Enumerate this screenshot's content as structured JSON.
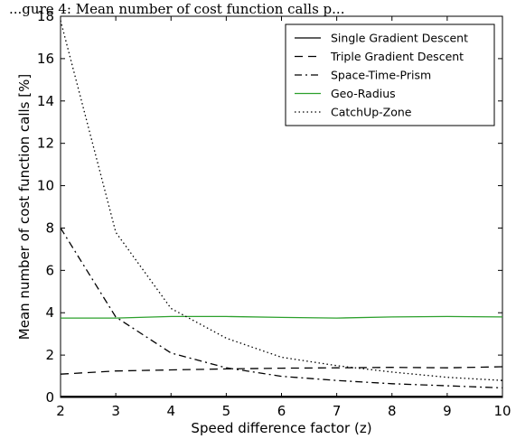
{
  "header_text": "...gure 4: Mean number of cost function calls p...",
  "chart_data": {
    "type": "line",
    "title": "",
    "xlabel": "Speed difference factor (z)",
    "ylabel": "Mean number of cost function calls [%]",
    "xlim": [
      2,
      10
    ],
    "ylim": [
      0,
      18
    ],
    "x_ticks": [
      2,
      3,
      4,
      5,
      6,
      7,
      8,
      9,
      10
    ],
    "y_ticks": [
      0,
      2,
      4,
      6,
      8,
      10,
      12,
      14,
      16,
      18
    ],
    "grid": false,
    "legend_position": "top-right",
    "series": [
      {
        "name": "Single Gradient Descent",
        "color": "#000000",
        "style": "solid",
        "points": [
          [
            2,
            0.05
          ],
          [
            3,
            0.05
          ],
          [
            4,
            0.05
          ],
          [
            5,
            0.05
          ],
          [
            6,
            0.05
          ],
          [
            7,
            0.05
          ],
          [
            8,
            0.05
          ],
          [
            9,
            0.05
          ],
          [
            10,
            0.05
          ]
        ]
      },
      {
        "name": "Triple Gradient Descent",
        "color": "#000000",
        "style": "dashed",
        "points": [
          [
            2,
            1.1
          ],
          [
            3,
            1.25
          ],
          [
            4,
            1.3
          ],
          [
            5,
            1.35
          ],
          [
            6,
            1.38
          ],
          [
            7,
            1.4
          ],
          [
            8,
            1.42
          ],
          [
            9,
            1.4
          ],
          [
            10,
            1.45
          ]
        ]
      },
      {
        "name": "Space-Time-Prism",
        "color": "#000000",
        "style": "dashdot",
        "points": [
          [
            2,
            8.0
          ],
          [
            3,
            3.8
          ],
          [
            4,
            2.1
          ],
          [
            5,
            1.4
          ],
          [
            6,
            1.0
          ],
          [
            7,
            0.8
          ],
          [
            8,
            0.65
          ],
          [
            9,
            0.55
          ],
          [
            10,
            0.45
          ]
        ]
      },
      {
        "name": "Geo-Radius",
        "color": "#2ca02c",
        "style": "solid",
        "points": [
          [
            2,
            3.75
          ],
          [
            3,
            3.75
          ],
          [
            4,
            3.82
          ],
          [
            5,
            3.82
          ],
          [
            6,
            3.78
          ],
          [
            7,
            3.75
          ],
          [
            8,
            3.8
          ],
          [
            9,
            3.82
          ],
          [
            10,
            3.8
          ]
        ]
      },
      {
        "name": "CatchUp-Zone",
        "color": "#000000",
        "style": "dotted",
        "points": [
          [
            2,
            17.8
          ],
          [
            3,
            7.8
          ],
          [
            4,
            4.2
          ],
          [
            5,
            2.8
          ],
          [
            6,
            1.9
          ],
          [
            7,
            1.5
          ],
          [
            8,
            1.2
          ],
          [
            9,
            0.95
          ],
          [
            10,
            0.8
          ]
        ]
      }
    ]
  }
}
